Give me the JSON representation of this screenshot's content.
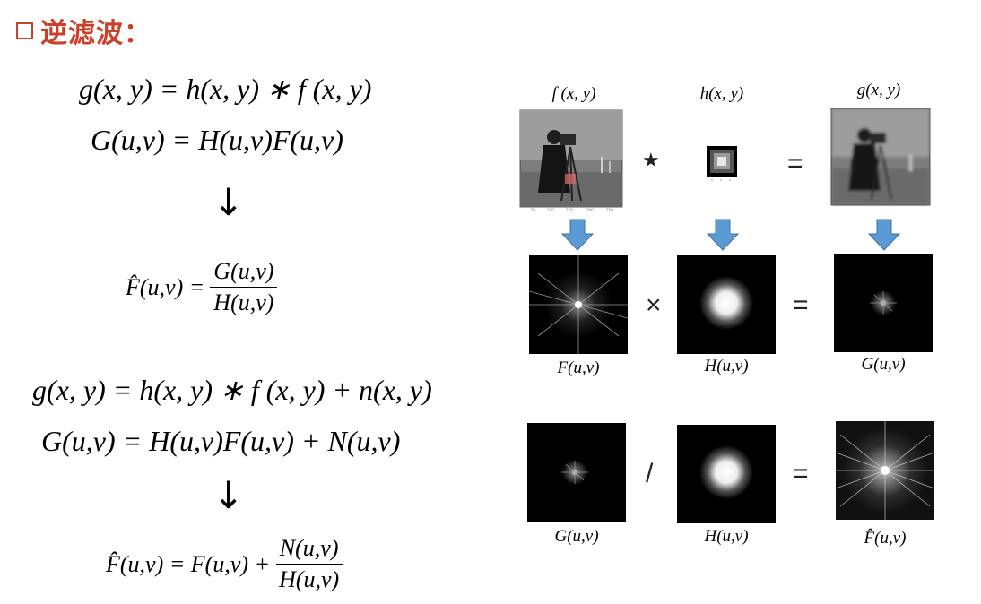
{
  "heading": {
    "text": "逆滤波："
  },
  "left": {
    "eq1": "g(x, y) = h(x, y) ∗ f (x, y)",
    "eq2": "G(u,v) = H(u,v)F(u,v)",
    "eq3_lhs": "F̂(u,v) =",
    "eq3_num": "G(u,v)",
    "eq3_den": "H(u,v)",
    "eq4": "g(x, y) = h(x, y) ∗ f (x, y) + n(x, y)",
    "eq5": "G(u,v) = H(u,v)F(u,v) + N(u,v)",
    "eq6_lhs": "F̂(u,v) = F(u,v) +",
    "eq6_num": "N(u,v)",
    "eq6_den": "H(u,v)",
    "arrow": "↓"
  },
  "right": {
    "top_labels": [
      "f (x, y)",
      "h(x, y)",
      "g(x, y)"
    ],
    "top_ops": [
      "★",
      "="
    ],
    "mid_labels": [
      "F(u,v)",
      "H(u,v)",
      "G(u,v)"
    ],
    "mid_ops": [
      "×",
      "="
    ],
    "bot_labels": [
      "G(u,v)",
      "H(u,v)",
      "F̂(u,v)"
    ],
    "bot_ops": [
      "/",
      "="
    ]
  },
  "colors": {
    "heading": "#c9412a",
    "arrow": "#5b9bd5"
  }
}
